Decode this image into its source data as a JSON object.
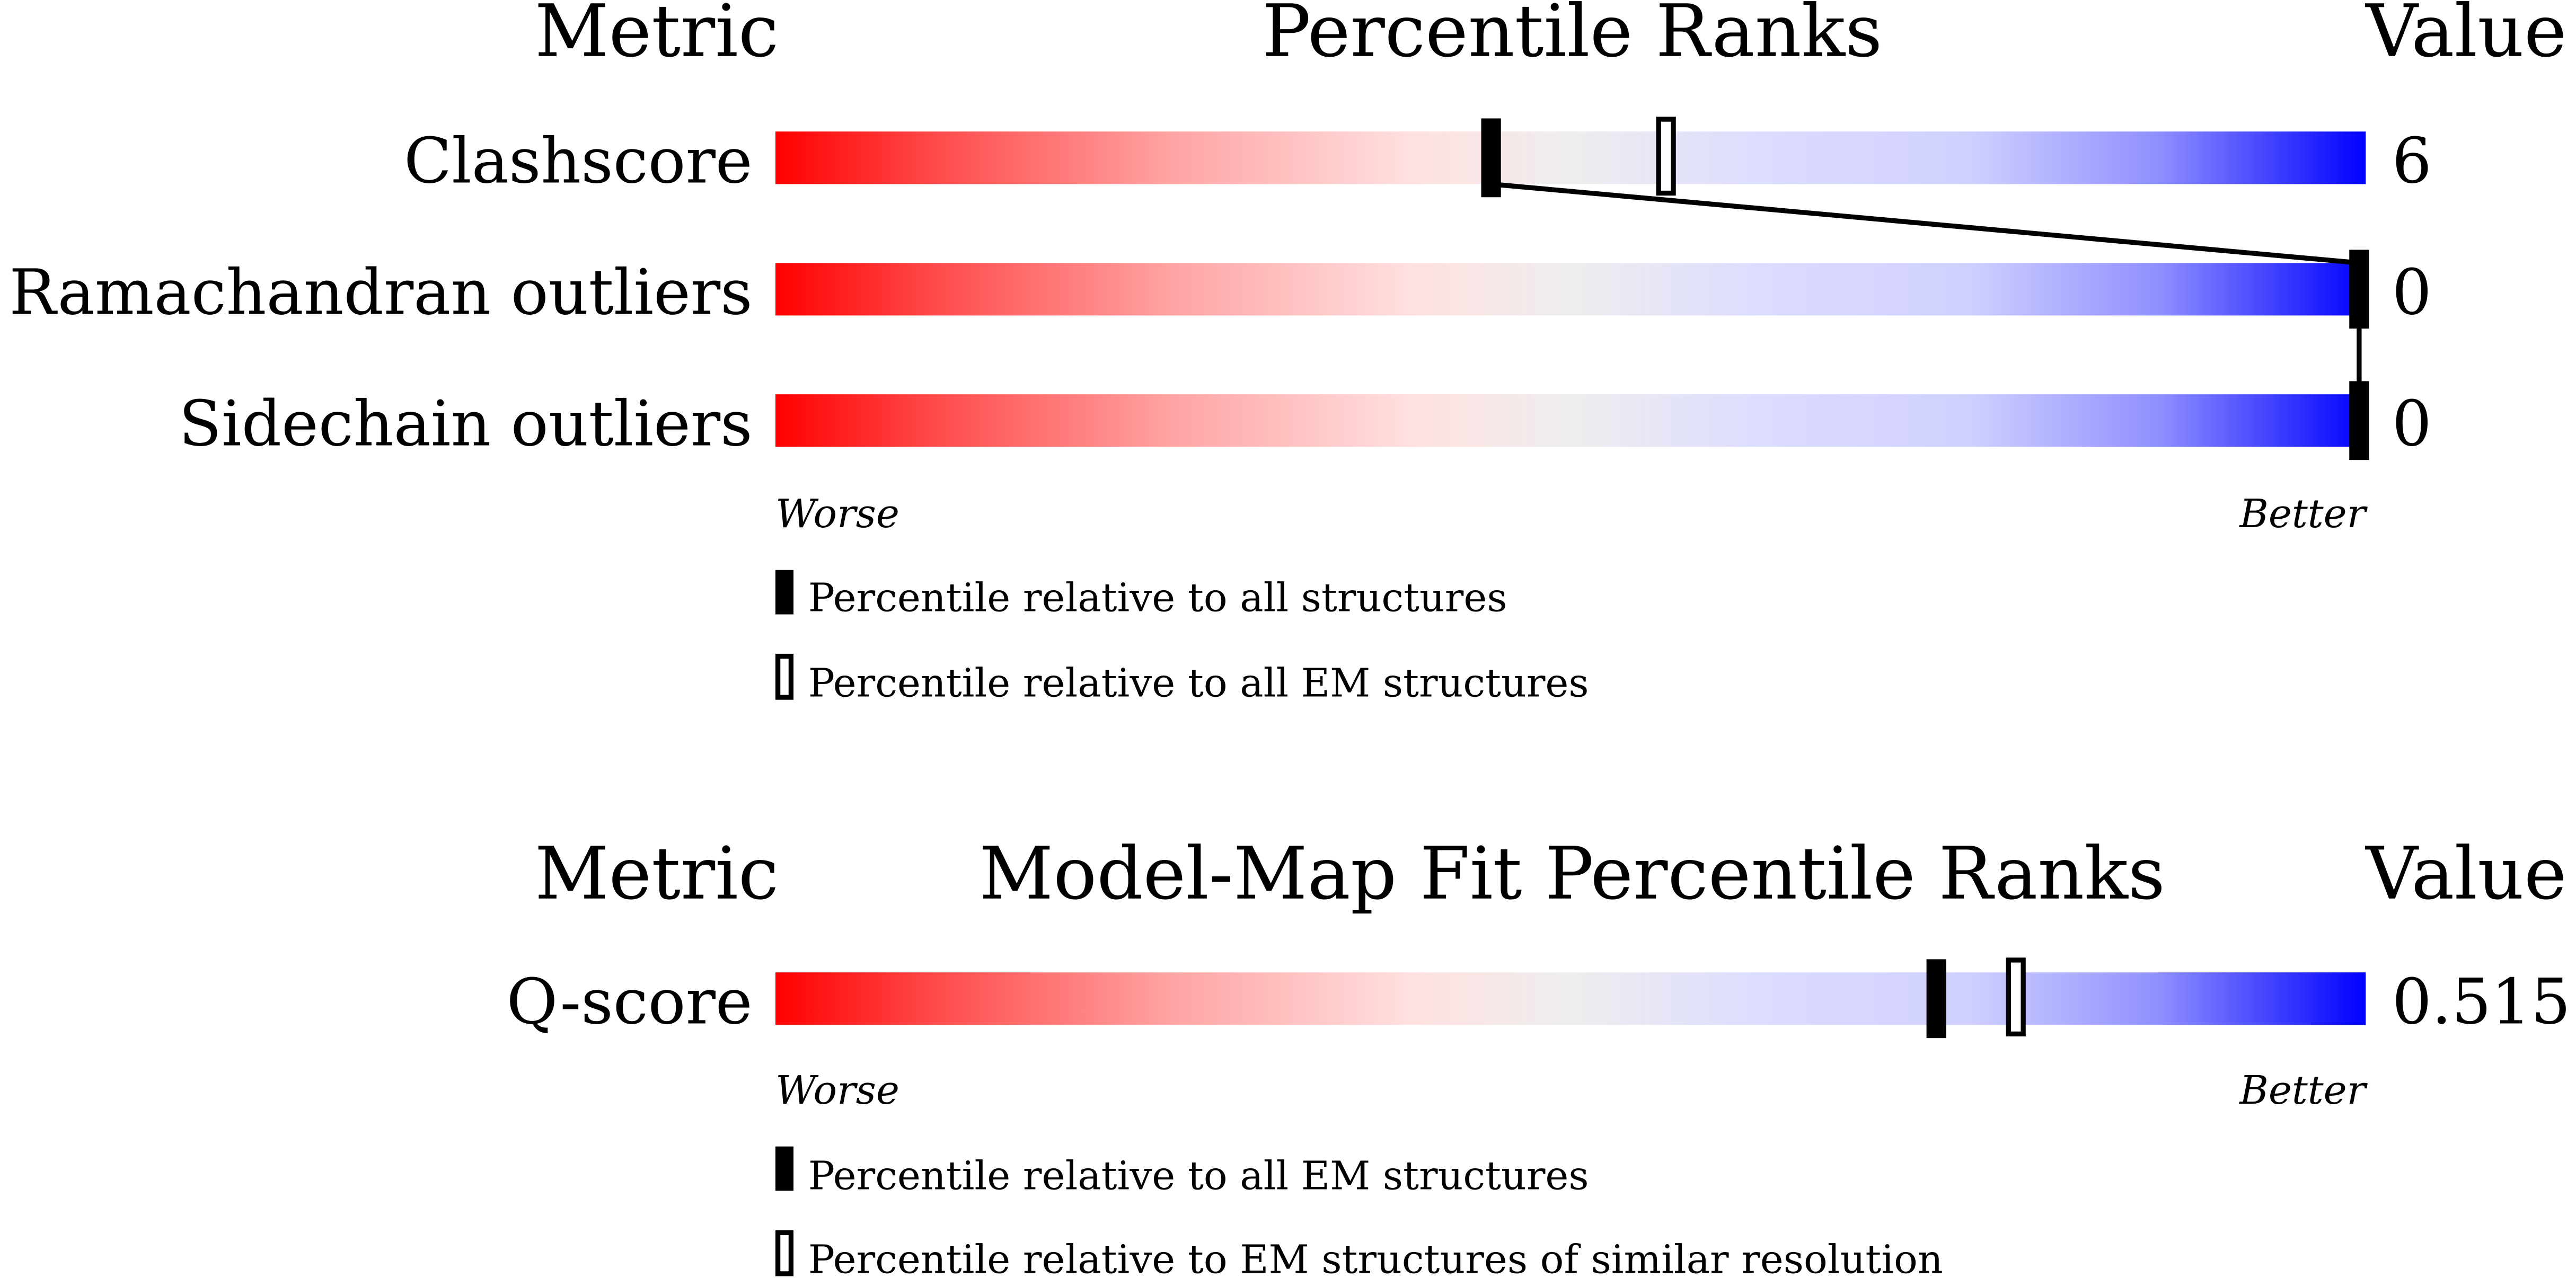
{
  "chart_data": [
    {
      "type": "percentile-slider",
      "headers": {
        "metric": "Metric",
        "title": "Percentile Ranks",
        "value": "Value"
      },
      "xlim": [
        0,
        100
      ],
      "rows": [
        {
          "metric": "Clashscore",
          "value": "6",
          "percentile_all": 45,
          "percentile_em": 56
        },
        {
          "metric": "Ramachandran outliers",
          "value": "0",
          "percentile_all": 100,
          "percentile_em": null
        },
        {
          "metric": "Sidechain outliers",
          "value": "0",
          "percentile_all": 100,
          "percentile_em": null
        }
      ],
      "worse_label": "Worse",
      "better_label": "Better",
      "legend": [
        {
          "marker": "filled",
          "label": "Percentile relative to all structures"
        },
        {
          "marker": "open",
          "label": "Percentile relative to all EM structures"
        }
      ]
    },
    {
      "type": "percentile-slider",
      "headers": {
        "metric": "Metric",
        "title": "Model-Map Fit Percentile Ranks",
        "value": "Value"
      },
      "xlim": [
        0,
        100
      ],
      "rows": [
        {
          "metric": "Q-score",
          "value": "0.515",
          "percentile_all": 73,
          "percentile_em": 78
        }
      ],
      "worse_label": "Worse",
      "better_label": "Better",
      "legend": [
        {
          "marker": "filled",
          "label": "Percentile relative to all EM structures"
        },
        {
          "marker": "open",
          "label": "Percentile relative to EM structures of similar resolution"
        }
      ]
    }
  ],
  "colors": {
    "worse": "#ff0000",
    "neutral": "#eeeeee",
    "better": "#0000ff",
    "marker": "#000000"
  }
}
